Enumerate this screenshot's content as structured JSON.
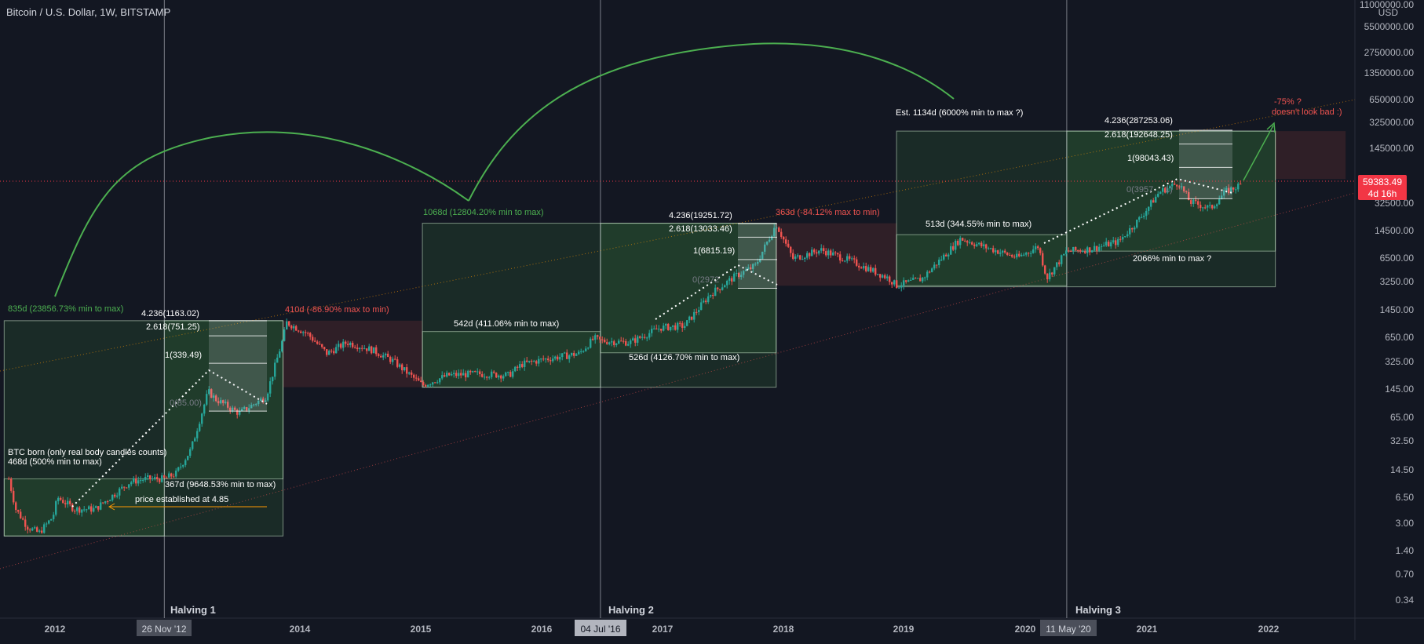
{
  "header": {
    "symbol_line": "Bitcoin / U.S. Dollar, 1W, BITSTAMP"
  },
  "price_scale": {
    "currency": "USD",
    "ticks": [
      "11000000.00",
      "5500000.00",
      "2750000.00",
      "1350000.00",
      "650000.00",
      "325000.00",
      "145000.00",
      "65000.00",
      "32500.00",
      "14500.00",
      "6500.00",
      "3250.00",
      "1450.00",
      "650.00",
      "325.00",
      "145.00",
      "65.00",
      "32.50",
      "14.50",
      "6.50",
      "3.00",
      "1.40",
      "0.70",
      "0.34"
    ],
    "current_price": "59383.49",
    "countdown": "4d 16h"
  },
  "time_axis": {
    "labels": [
      "2012",
      "2013",
      "2014",
      "2015",
      "2016",
      "2017",
      "2018",
      "2019",
      "2020",
      "2021",
      "2022"
    ],
    "markers": [
      "26 Nov '12",
      "04 Jul '16",
      "11 May '20"
    ]
  },
  "halvings": [
    "Halving 1",
    "Halving 2",
    "Halving 3"
  ],
  "annotations": {
    "btc_born_1": "BTC born (only real body candles counts)",
    "btc_born_2": "468d (500% min to max)",
    "price_established": "price established at 4.85",
    "c1_range": "835d (23856.73% min to max)",
    "c1_runup": "367d (9648.53% min to max)",
    "c1_fall": "410d (-86.90% max to min)",
    "c1_fib_4236": "4.236(1163.02)",
    "c1_fib_2618": "2.618(751.25)",
    "c1_fib_1": "1(339.49)",
    "c1_fib_0": "0(85.00)",
    "c2_range": "1068d (12804.20% min to max)",
    "c2_acc": "542d (411.06% min to max)",
    "c2_runup": "526d (4126.70% min to max)",
    "c2_fall": "363d (-84.12% max to min)",
    "c2_fib_4236": "4.236(19251.72)",
    "c2_fib_2618": "2.618(13033.46)",
    "c2_fib_1": "1(6815.19)",
    "c2_fib_0": "0(2972",
    "c3_range": "Est. 1134d (6000% min to max ?)",
    "c3_acc": "513d (344.55% min to max)",
    "c3_runup": "2066% min to max ?",
    "c3_fib_4236": "4.236(287253.06)",
    "c3_fib_2618": "2.618(192648.25)",
    "c3_fib_1": "1(98043.43)",
    "c3_fib_0": "0(3957",
    "c3_fib_0b": "1)",
    "target_1": "-75% ?",
    "target_2": "doesn't look bad :)"
  },
  "colors": {
    "background": "#131722",
    "up_candle": "#26a69a",
    "down_candle": "#ef5350",
    "green_zone": "#4caf50",
    "red_zone": "#ef5350",
    "arc": "#4caf50",
    "current_price_bg": "#f23645",
    "text": "#d1d4dc",
    "axis_text": "#b2b5be"
  },
  "chart_data": {
    "type": "candlestick",
    "title": "Bitcoin / U.S. Dollar, 1W, BITSTAMP",
    "y_scale": "log",
    "ylim": [
      0.3,
      11000000
    ],
    "xlim": [
      "2011-08",
      "2022-09"
    ],
    "price_points": [
      [
        "2011-08-15",
        12
      ],
      [
        "2011-09-05",
        5
      ],
      [
        "2011-10-10",
        3
      ],
      [
        "2011-11-14",
        2.5
      ],
      [
        "2011-12-26",
        4
      ],
      [
        "2012-01-09",
        7
      ],
      [
        "2012-03-01",
        5
      ],
      [
        "2012-05-01",
        5
      ],
      [
        "2012-08-15",
        11
      ],
      [
        "2012-10-01",
        12
      ],
      [
        "2012-11-26",
        12
      ],
      [
        "2013-01-01",
        14
      ],
      [
        "2013-02-15",
        28
      ],
      [
        "2013-04-08",
        150
      ],
      [
        "2013-05-01",
        120
      ],
      [
        "2013-07-10",
        80
      ],
      [
        "2013-09-30",
        130
      ],
      [
        "2013-11-20",
        700
      ],
      [
        "2013-12-01",
        1100
      ],
      [
        "2014-02-01",
        800
      ],
      [
        "2014-04-01",
        450
      ],
      [
        "2014-06-01",
        620
      ],
      [
        "2014-08-15",
        500
      ],
      [
        "2014-10-15",
        370
      ],
      [
        "2015-01-14",
        180
      ],
      [
        "2015-04-01",
        240
      ],
      [
        "2015-07-01",
        250
      ],
      [
        "2015-10-01",
        240
      ],
      [
        "2015-11-10",
        330
      ],
      [
        "2016-01-15",
        380
      ],
      [
        "2016-05-01",
        450
      ],
      [
        "2016-06-15",
        700
      ],
      [
        "2016-07-04",
        650
      ],
      [
        "2016-10-01",
        620
      ],
      [
        "2017-01-01",
        950
      ],
      [
        "2017-03-15",
        1000
      ],
      [
        "2017-06-01",
        2500
      ],
      [
        "2017-08-15",
        4200
      ],
      [
        "2017-10-15",
        5700
      ],
      [
        "2017-12-17",
        19000
      ],
      [
        "2018-02-05",
        7000
      ],
      [
        "2018-05-01",
        9000
      ],
      [
        "2018-08-01",
        6500
      ],
      [
        "2018-11-20",
        4000
      ],
      [
        "2018-12-15",
        3200
      ],
      [
        "2019-03-01",
        3900
      ],
      [
        "2019-06-26",
        12500
      ],
      [
        "2019-09-01",
        10000
      ],
      [
        "2019-12-15",
        7200
      ],
      [
        "2020-02-15",
        10000
      ],
      [
        "2020-03-12",
        4000
      ],
      [
        "2020-05-11",
        8700
      ],
      [
        "2020-07-20",
        9200
      ],
      [
        "2020-10-15",
        11500
      ],
      [
        "2020-12-20",
        23000
      ],
      [
        "2021-02-15",
        48000
      ],
      [
        "2021-04-14",
        63000
      ],
      [
        "2021-05-19",
        36000
      ],
      [
        "2021-07-20",
        30000
      ],
      [
        "2021-09-01",
        48000
      ],
      [
        "2021-10-20",
        59383
      ]
    ],
    "halving_dates": [
      "2012-11-26",
      "2016-07-04",
      "2020-05-11"
    ],
    "current_price": 59383.49,
    "fib_levels": [
      {
        "cycle": 1,
        "levels": [
          {
            "ratio": 0,
            "value": 85.0
          },
          {
            "ratio": 1,
            "value": 339.49
          },
          {
            "ratio": 2.618,
            "value": 751.25
          },
          {
            "ratio": 4.236,
            "value": 1163.02
          }
        ]
      },
      {
        "cycle": 2,
        "levels": [
          {
            "ratio": 0,
            "value": 2972
          },
          {
            "ratio": 1,
            "value": 6815.19
          },
          {
            "ratio": 2.618,
            "value": 13033.46
          },
          {
            "ratio": 4.236,
            "value": 19251.72
          }
        ]
      },
      {
        "cycle": 3,
        "levels": [
          {
            "ratio": 0,
            "value": 39570
          },
          {
            "ratio": 1,
            "value": 98043.43
          },
          {
            "ratio": 2.618,
            "value": 192648.25
          },
          {
            "ratio": 4.236,
            "value": 287253.06
          }
        ]
      }
    ],
    "ranges": [
      {
        "label": "468d (500% min to max)",
        "color": "green",
        "from": "2011-08-01",
        "to": "2012-11-26",
        "min": 2.3,
        "max": 12
      },
      {
        "label": "835d (23856.73% min to max)",
        "color": "green",
        "from": "2011-08-01",
        "to": "2013-11-20",
        "min": 2.3,
        "max": 1163
      },
      {
        "label": "367d (9648.53% min to max)",
        "color": "green",
        "from": "2012-11-26",
        "to": "2013-11-20",
        "min": 12,
        "max": 1163
      },
      {
        "label": "410d (-86.90% max to min)",
        "color": "red",
        "from": "2013-11-20",
        "to": "2015-01-14",
        "min": 170,
        "max": 1163
      },
      {
        "label": "1068d (12804.20% min to max)",
        "color": "green",
        "from": "2015-01-14",
        "to": "2017-12-17",
        "min": 170,
        "max": 19500
      },
      {
        "label": "542d (411.06% min to max)",
        "color": "green",
        "from": "2015-01-14",
        "to": "2016-07-04",
        "min": 170,
        "max": 850
      },
      {
        "label": "526d (4126.70% min to max)",
        "color": "green",
        "from": "2016-07-04",
        "to": "2017-12-17",
        "min": 460,
        "max": 19500
      },
      {
        "label": "363d (-84.12% max to min)",
        "color": "red",
        "from": "2017-12-17",
        "to": "2018-12-15",
        "min": 3200,
        "max": 19500
      },
      {
        "label": "Est. 1134d (6000% min to max ?)",
        "color": "green",
        "from": "2018-12-15",
        "to": "2022-01-31",
        "min": 3100,
        "max": 280000
      },
      {
        "label": "513d (344.55% min to max)",
        "color": "green",
        "from": "2018-12-15",
        "to": "2020-05-11",
        "min": 3200,
        "max": 14000
      },
      {
        "label": "2066% min to max ?",
        "color": "green",
        "from": "2020-05-11",
        "to": "2022-01-31",
        "min": 8700,
        "max": 280000
      },
      {
        "label": "-75% ?",
        "color": "red",
        "from": "2022-01-31",
        "to": "2022-08-31",
        "min": 70000,
        "max": 280000
      }
    ]
  }
}
